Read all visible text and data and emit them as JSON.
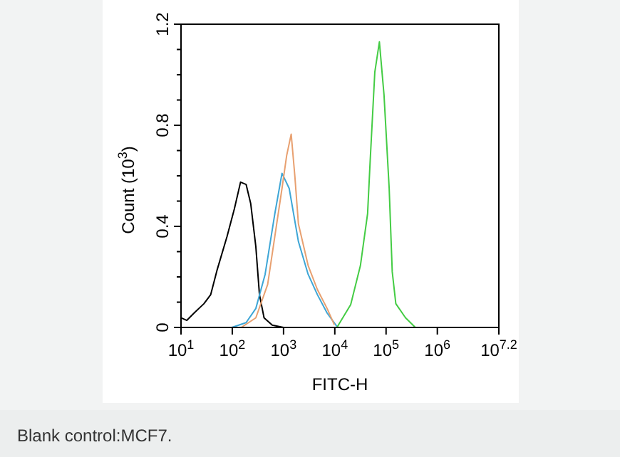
{
  "chart_data": {
    "type": "line",
    "xlabel": "FITC-H",
    "ylabel": "Count (10$^{3}$)",
    "annotations": [
      "Blank control:MCF7."
    ],
    "log": "x",
    "xlim": [
      10,
      15848932
    ],
    "xticks": [
      {
        "value": 10,
        "label": "10$^{1}$"
      },
      {
        "value": 100,
        "label": "10$^{2}$"
      },
      {
        "value": 1000,
        "label": "10$^{3}$"
      },
      {
        "value": 10000,
        "label": "10$^{4}$"
      },
      {
        "value": 100000,
        "label": "10$^{5}$"
      },
      {
        "value": 1000000,
        "label": "10$^{6}$"
      },
      {
        "value": 15848932,
        "label": "10$^{7.2}$"
      }
    ],
    "ylim": [
      0,
      1.2
    ],
    "yticks": [
      0,
      {
        "value": 0.1,
        "label": null
      },
      {
        "value": 0.2,
        "label": null
      },
      {
        "value": 0.3,
        "label": null
      },
      0.4,
      {
        "value": 0.5,
        "label": null
      },
      {
        "value": 0.6,
        "label": null
      },
      {
        "value": 0.7,
        "label": null
      },
      0.8,
      {
        "value": 0.9,
        "label": null
      },
      {
        "value": 1.0,
        "label": null
      },
      {
        "value": 1.1,
        "label": null
      },
      1.2
    ],
    "grid": false,
    "marker": "none",
    "line_style": "solid",
    "series": [
      {
        "color": "#000000",
        "x": [
          10,
          13,
          18,
          28,
          38,
          51,
          79,
          110,
          145,
          186,
          229,
          288,
          339,
          417,
          603,
          1000
        ],
        "values": [
          0.038,
          0.028,
          0.057,
          0.094,
          0.13,
          0.23,
          0.36,
          0.47,
          0.575,
          0.566,
          0.49,
          0.32,
          0.13,
          0.038,
          0.009,
          0
        ]
      },
      {
        "color": "#3ea6d6",
        "x": [
          98,
          186,
          288,
          437,
          676,
          933,
          1290,
          1950,
          3020,
          4570,
          7080,
          11000
        ],
        "values": [
          0,
          0.019,
          0.075,
          0.21,
          0.45,
          0.61,
          0.55,
          0.34,
          0.21,
          0.13,
          0.057,
          0.004
        ]
      },
      {
        "color": "#e8a070",
        "x": [
          150,
          288,
          490,
          676,
          933,
          1150,
          1410,
          1660,
          1950,
          3020,
          4570,
          7080,
          9800
        ],
        "values": [
          0,
          0.038,
          0.17,
          0.36,
          0.55,
          0.68,
          0.765,
          0.6,
          0.41,
          0.245,
          0.15,
          0.075,
          0.01
        ]
      },
      {
        "color": "#44cc44",
        "x": [
          11000,
          20400,
          31600,
          43600,
          49000,
          60300,
          74100,
          91200,
          115000,
          132000,
          155000,
          240000,
          372000
        ],
        "values": [
          0,
          0.09,
          0.245,
          0.45,
          0.66,
          1.01,
          1.13,
          0.92,
          0.55,
          0.22,
          0.094,
          0.038,
          0
        ]
      }
    ]
  }
}
